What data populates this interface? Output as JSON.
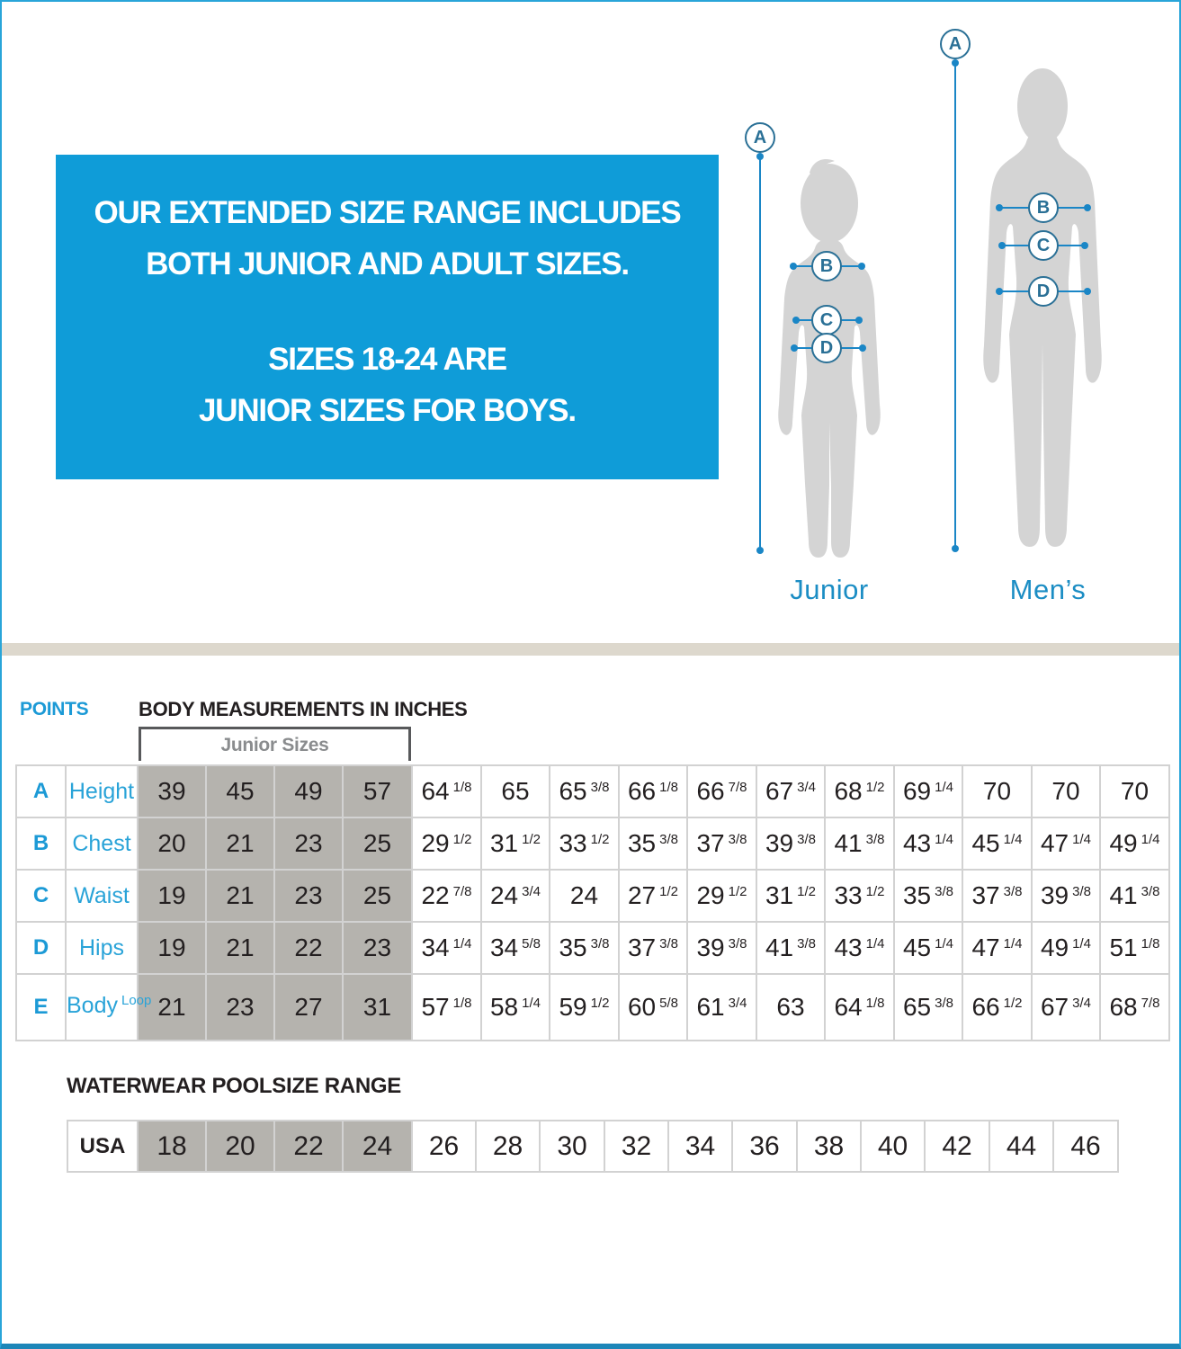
{
  "banner": {
    "bg_color": "#0f9cd8",
    "line1": "OUR EXTENDED SIZE RANGE INCLUDES",
    "line2": "BOTH JUNIOR AND ADULT SIZES.",
    "line3": "SIZES 18-24 ARE",
    "line4": "JUNIOR SIZES FOR BOYS."
  },
  "figures": {
    "junior_label": "Junior",
    "mens_label": "Men’s",
    "point_labels": {
      "a": "A",
      "b": "B",
      "c": "C",
      "d": "D"
    },
    "silhouette_color": "#d4d4d4",
    "line_color": "#1a86c6"
  },
  "measurements": {
    "points_heading": "POINTS",
    "title": "BODY MEASUREMENTS IN INCHES",
    "junior_sizes_label": "Junior Sizes",
    "rows": [
      {
        "point": "A",
        "name": "Height",
        "junior": [
          "39",
          "45",
          "49",
          "57"
        ],
        "adult": [
          "64 1/8",
          "65",
          "65 3/8",
          "66 1/8",
          "66 7/8",
          "67 3/4",
          "68 1/2",
          "69 1/4",
          "70",
          "70",
          "70"
        ]
      },
      {
        "point": "B",
        "name": "Chest",
        "junior": [
          "20",
          "21",
          "23",
          "25"
        ],
        "adult": [
          "29 1/2",
          "31 1/2",
          "33 1/2",
          "35 3/8",
          "37 3/8",
          "39 3/8",
          "41 3/8",
          "43 1/4",
          "45 1/4",
          "47 1/4",
          "49 1/4"
        ]
      },
      {
        "point": "C",
        "name": "Waist",
        "junior": [
          "19",
          "21",
          "23",
          "25"
        ],
        "adult": [
          "22 7/8",
          "24 3/4",
          "24",
          "27 1/2",
          "29 1/2",
          "31 1/2",
          "33 1/2",
          "35 3/8",
          "37 3/8",
          "39 3/8",
          "41 3/8"
        ]
      },
      {
        "point": "D",
        "name": "Hips",
        "junior": [
          "19",
          "21",
          "22",
          "23"
        ],
        "adult": [
          "34 1/4",
          "34 5/8",
          "35 3/8",
          "37 3/8",
          "39 3/8",
          "41 3/8",
          "43 1/4",
          "45 1/4",
          "47 1/4",
          "49 1/4",
          "51 1/8"
        ]
      },
      {
        "point": "E",
        "name": "Body Loop",
        "junior": [
          "21",
          "23",
          "27",
          "31"
        ],
        "adult": [
          "57 1/8",
          "58 1/4",
          "59 1/2",
          "60 5/8",
          "61 3/4",
          "63",
          "64 1/8",
          "65 3/8",
          "66 1/2",
          "67 3/4",
          "68 7/8"
        ]
      }
    ]
  },
  "poolsize": {
    "title": "WATERWEAR POOLSIZE RANGE",
    "row_label": "USA",
    "junior": [
      "18",
      "20",
      "22",
      "24"
    ],
    "adult": [
      "26",
      "28",
      "30",
      "32",
      "34",
      "36",
      "38",
      "40",
      "42",
      "44",
      "46"
    ]
  },
  "colors": {
    "accent_blue": "#1c9ad6",
    "dark_text": "#231f20",
    "junior_cell_gray": "#b5b3ae",
    "frame_blue": "#29a5d9",
    "divider_beige": "#ddd8cd"
  }
}
